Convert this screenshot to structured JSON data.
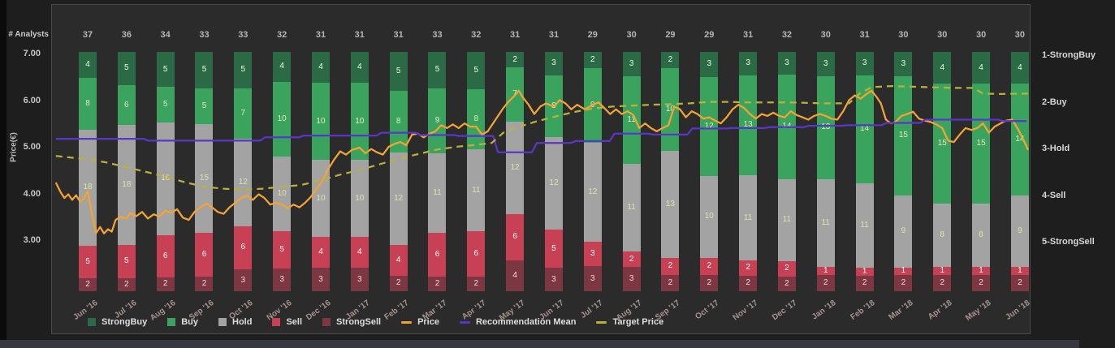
{
  "chart_data": {
    "type": "combo-stacked-bar-with-lines",
    "top_axis_label": "# Analysts",
    "categories": [
      "Jun '16",
      "Jul '16",
      "Aug '16",
      "Sep '16",
      "Oct '16",
      "Nov '16",
      "Dec '16",
      "Jan '17",
      "Feb '17",
      "Mar '17",
      "Apr '17",
      "May '17",
      "Jun '17",
      "Jul '17",
      "Aug '17",
      "Sep '17",
      "Oct '17",
      "Nov '17",
      "Dec '17",
      "Jan '18",
      "Feb '18",
      "Mar '18",
      "Apr '18",
      "May '18",
      "Jun '18"
    ],
    "analyst_counts": [
      37,
      36,
      34,
      33,
      33,
      32,
      31,
      31,
      31,
      33,
      32,
      31,
      31,
      29,
      30,
      29,
      29,
      31,
      32,
      30,
      31,
      30,
      30,
      30,
      30
    ],
    "stacked_series": [
      {
        "name": "StrongBuy",
        "color": "#2a6b46",
        "label_color": "#f2f7ee",
        "values": [
          4,
          5,
          5,
          5,
          5,
          4,
          4,
          4,
          5,
          5,
          5,
          2,
          3,
          2,
          3,
          2,
          3,
          3,
          3,
          3,
          3,
          3,
          4,
          4,
          4
        ]
      },
      {
        "name": "Buy",
        "color": "#3aa45e",
        "label_color": "#e6e9c0",
        "values": [
          8,
          6,
          5,
          5,
          7,
          10,
          10,
          10,
          8,
          9,
          8,
          7,
          8,
          9,
          11,
          10,
          12,
          13,
          14,
          13,
          14,
          15,
          15,
          15,
          14
        ]
      },
      {
        "name": "Hold",
        "color": "#a3a3a3",
        "label_color": "#dfe3a6",
        "values": [
          18,
          18,
          16,
          15,
          12,
          10,
          10,
          10,
          12,
          11,
          11,
          12,
          12,
          12,
          11,
          13,
          10,
          11,
          11,
          11,
          11,
          9,
          8,
          8,
          9
        ]
      },
      {
        "name": "Sell",
        "color": "#c74054",
        "label_color": "#ffffff",
        "values": [
          5,
          5,
          6,
          6,
          6,
          5,
          4,
          4,
          4,
          6,
          6,
          6,
          5,
          3,
          2,
          2,
          2,
          2,
          2,
          1,
          1,
          1,
          1,
          1,
          1
        ]
      },
      {
        "name": "StrongSell",
        "color": "#7d3743",
        "label_color": "#f2dada",
        "values": [
          2,
          2,
          2,
          2,
          3,
          3,
          3,
          3,
          2,
          2,
          2,
          4,
          3,
          3,
          3,
          2,
          2,
          2,
          2,
          2,
          2,
          2,
          2,
          2,
          2
        ]
      }
    ],
    "left_axis": {
      "label": "Price(€)",
      "ticks": [
        "7.00",
        "6.00",
        "5.00",
        "4.00",
        "3.00"
      ],
      "tick_values": [
        7,
        6,
        5,
        4,
        3
      ]
    },
    "right_axis": {
      "labels": [
        "1-StrongBuy",
        "2-Buy",
        "3-Hold",
        "4-Sell",
        "5-StrongSell"
      ],
      "values": [
        1,
        2,
        3,
        4,
        5
      ]
    },
    "lines": [
      {
        "name": "Price",
        "color": "#f5a331",
        "style": "solid",
        "axis": "price_eur",
        "points": [
          [
            -0.82,
            4.25
          ],
          [
            -0.7,
            4.05
          ],
          [
            -0.6,
            3.92
          ],
          [
            -0.5,
            4.0
          ],
          [
            -0.4,
            3.88
          ],
          [
            -0.3,
            3.98
          ],
          [
            -0.2,
            3.85
          ],
          [
            -0.1,
            3.9
          ],
          [
            0.0,
            4.07
          ],
          [
            0.1,
            3.6
          ],
          [
            0.22,
            3.17
          ],
          [
            0.32,
            3.3
          ],
          [
            0.42,
            3.16
          ],
          [
            0.52,
            3.25
          ],
          [
            0.62,
            3.2
          ],
          [
            0.72,
            3.45
          ],
          [
            0.85,
            3.52
          ],
          [
            1.0,
            3.48
          ],
          [
            1.1,
            3.6
          ],
          [
            1.25,
            3.53
          ],
          [
            1.4,
            3.62
          ],
          [
            1.55,
            3.48
          ],
          [
            1.7,
            3.57
          ],
          [
            1.85,
            3.52
          ],
          [
            2.0,
            3.65
          ],
          [
            2.15,
            3.6
          ],
          [
            2.3,
            3.68
          ],
          [
            2.45,
            3.5
          ],
          [
            2.6,
            3.45
          ],
          [
            2.75,
            3.62
          ],
          [
            2.9,
            3.72
          ],
          [
            3.05,
            3.8
          ],
          [
            3.2,
            3.72
          ],
          [
            3.35,
            3.62
          ],
          [
            3.5,
            3.58
          ],
          [
            3.65,
            3.72
          ],
          [
            3.8,
            3.82
          ],
          [
            3.95,
            3.92
          ],
          [
            4.1,
            3.97
          ],
          [
            4.25,
            3.88
          ],
          [
            4.4,
            4.0
          ],
          [
            4.55,
            3.92
          ],
          [
            4.7,
            3.78
          ],
          [
            4.85,
            3.82
          ],
          [
            5.0,
            3.78
          ],
          [
            5.15,
            3.7
          ],
          [
            5.3,
            3.78
          ],
          [
            5.45,
            3.72
          ],
          [
            5.6,
            3.82
          ],
          [
            5.75,
            3.95
          ],
          [
            5.9,
            4.12
          ],
          [
            6.05,
            4.3
          ],
          [
            6.2,
            4.55
          ],
          [
            6.35,
            4.75
          ],
          [
            6.5,
            4.92
          ],
          [
            6.65,
            4.85
          ],
          [
            6.8,
            4.95
          ],
          [
            7.0,
            5.0
          ],
          [
            7.15,
            4.88
          ],
          [
            7.3,
            4.97
          ],
          [
            7.45,
            4.9
          ],
          [
            7.6,
            4.85
          ],
          [
            7.75,
            5.02
          ],
          [
            7.9,
            5.08
          ],
          [
            8.05,
            5.12
          ],
          [
            8.2,
            5.05
          ],
          [
            8.35,
            5.28
          ],
          [
            8.5,
            5.3
          ],
          [
            8.65,
            5.22
          ],
          [
            8.8,
            5.3
          ],
          [
            8.95,
            5.35
          ],
          [
            9.1,
            5.48
          ],
          [
            9.25,
            5.42
          ],
          [
            9.4,
            5.5
          ],
          [
            9.55,
            5.42
          ],
          [
            9.7,
            5.52
          ],
          [
            9.85,
            5.45
          ],
          [
            10.0,
            5.45
          ],
          [
            10.15,
            5.28
          ],
          [
            10.3,
            5.35
          ],
          [
            10.5,
            5.6
          ],
          [
            10.7,
            5.85
          ],
          [
            10.85,
            6.0
          ],
          [
            11.0,
            6.12
          ],
          [
            11.1,
            6.22
          ],
          [
            11.2,
            6.08
          ],
          [
            11.35,
            5.92
          ],
          [
            11.5,
            5.72
          ],
          [
            11.65,
            5.88
          ],
          [
            11.8,
            5.95
          ],
          [
            12.0,
            5.88
          ],
          [
            12.15,
            6.02
          ],
          [
            12.3,
            5.95
          ],
          [
            12.45,
            5.82
          ],
          [
            12.6,
            5.92
          ],
          [
            12.8,
            5.82
          ],
          [
            13.0,
            5.92
          ],
          [
            13.15,
            5.97
          ],
          [
            13.3,
            5.85
          ],
          [
            13.45,
            5.72
          ],
          [
            13.6,
            5.82
          ],
          [
            13.75,
            5.72
          ],
          [
            13.9,
            5.78
          ],
          [
            14.05,
            5.7
          ],
          [
            14.2,
            5.42
          ],
          [
            14.35,
            5.52
          ],
          [
            14.5,
            5.42
          ],
          [
            14.65,
            5.35
          ],
          [
            14.8,
            5.42
          ],
          [
            14.95,
            5.48
          ],
          [
            15.1,
            5.88
          ],
          [
            15.25,
            5.82
          ],
          [
            15.4,
            5.65
          ],
          [
            15.55,
            5.78
          ],
          [
            15.7,
            5.72
          ],
          [
            15.85,
            5.62
          ],
          [
            16.0,
            5.65
          ],
          [
            16.15,
            5.58
          ],
          [
            16.3,
            5.52
          ],
          [
            16.45,
            5.65
          ],
          [
            16.6,
            5.82
          ],
          [
            16.75,
            5.92
          ],
          [
            16.9,
            5.85
          ],
          [
            17.05,
            5.72
          ],
          [
            17.2,
            5.62
          ],
          [
            17.35,
            5.72
          ],
          [
            17.5,
            5.68
          ],
          [
            17.65,
            5.75
          ],
          [
            17.8,
            5.68
          ],
          [
            17.95,
            5.65
          ],
          [
            18.1,
            5.78
          ],
          [
            18.25,
            5.7
          ],
          [
            18.4,
            5.65
          ],
          [
            18.55,
            5.6
          ],
          [
            18.7,
            5.68
          ],
          [
            18.85,
            5.72
          ],
          [
            19.0,
            5.68
          ],
          [
            19.15,
            5.62
          ],
          [
            19.3,
            5.6
          ],
          [
            19.45,
            5.78
          ],
          [
            19.6,
            6.02
          ],
          [
            19.75,
            6.12
          ],
          [
            19.9,
            6.05
          ],
          [
            20.05,
            6.15
          ],
          [
            20.18,
            6.22
          ],
          [
            20.3,
            6.1
          ],
          [
            20.42,
            5.95
          ],
          [
            20.55,
            5.6
          ],
          [
            20.68,
            5.52
          ],
          [
            20.8,
            5.55
          ],
          [
            20.95,
            5.68
          ],
          [
            21.1,
            5.72
          ],
          [
            21.25,
            5.77
          ],
          [
            21.4,
            5.62
          ],
          [
            21.55,
            5.58
          ],
          [
            21.7,
            5.55
          ],
          [
            21.85,
            5.5
          ],
          [
            22.0,
            5.42
          ],
          [
            22.15,
            5.15
          ],
          [
            22.3,
            5.12
          ],
          [
            22.45,
            5.28
          ],
          [
            22.6,
            5.42
          ],
          [
            22.75,
            5.38
          ],
          [
            22.9,
            5.42
          ],
          [
            23.05,
            5.52
          ],
          [
            23.2,
            5.32
          ],
          [
            23.35,
            5.45
          ],
          [
            23.5,
            5.52
          ],
          [
            23.65,
            5.58
          ],
          [
            23.8,
            5.6
          ],
          [
            23.95,
            5.4
          ],
          [
            24.1,
            5.15
          ],
          [
            24.25,
            4.95
          ]
        ]
      },
      {
        "name": "Recommendation Mean",
        "color": "#5b34c8",
        "style": "step",
        "axis": "recommendation_1_to_5",
        "monthly_values": [
          2.81,
          2.81,
          2.85,
          2.85,
          2.85,
          2.78,
          2.74,
          2.74,
          2.68,
          2.73,
          2.75,
          3.1,
          2.9,
          2.86,
          2.7,
          2.72,
          2.59,
          2.58,
          2.56,
          2.53,
          2.52,
          2.47,
          2.4,
          2.4,
          2.43
        ]
      },
      {
        "name": "Target Price",
        "color": "#bdb03a",
        "style": "dashed",
        "axis": "price_eur",
        "points": [
          [
            -0.82,
            4.82
          ],
          [
            0,
            4.75
          ],
          [
            0.5,
            4.68
          ],
          [
            1,
            4.58
          ],
          [
            1.5,
            4.48
          ],
          [
            2,
            4.38
          ],
          [
            2.5,
            4.26
          ],
          [
            3,
            4.16
          ],
          [
            3.5,
            4.12
          ],
          [
            4,
            4.1
          ],
          [
            4.5,
            4.12
          ],
          [
            5,
            4.16
          ],
          [
            5.5,
            4.2
          ],
          [
            6,
            4.3
          ],
          [
            6.5,
            4.42
          ],
          [
            7,
            4.52
          ],
          [
            7.5,
            4.64
          ],
          [
            8,
            4.76
          ],
          [
            8.5,
            4.86
          ],
          [
            9,
            4.96
          ],
          [
            9.5,
            5.02
          ],
          [
            10,
            5.06
          ],
          [
            10.4,
            5.1
          ],
          [
            10.7,
            5.32
          ],
          [
            11,
            5.42
          ],
          [
            11.5,
            5.55
          ],
          [
            12,
            5.66
          ],
          [
            12.5,
            5.76
          ],
          [
            13,
            5.84
          ],
          [
            13.5,
            5.88
          ],
          [
            14,
            5.9
          ],
          [
            14.5,
            5.92
          ],
          [
            15,
            5.93
          ],
          [
            15.5,
            5.95
          ],
          [
            16,
            5.98
          ],
          [
            16.5,
            5.98
          ],
          [
            17,
            5.97
          ],
          [
            18,
            5.97
          ],
          [
            19,
            5.95
          ],
          [
            19.6,
            5.95
          ],
          [
            19.9,
            6.18
          ],
          [
            20.2,
            6.3
          ],
          [
            20.7,
            6.32
          ],
          [
            21.5,
            6.3
          ],
          [
            22.3,
            6.28
          ],
          [
            22.8,
            6.28
          ],
          [
            23.05,
            6.16
          ],
          [
            23.5,
            6.15
          ],
          [
            24.3,
            6.16
          ]
        ]
      }
    ],
    "legend": [
      {
        "label": "StrongBuy",
        "marker": "square",
        "color": "#2a6b46"
      },
      {
        "label": "Buy",
        "marker": "square",
        "color": "#3aa45e"
      },
      {
        "label": "Hold",
        "marker": "square",
        "color": "#a3a3a3"
      },
      {
        "label": "Sell",
        "marker": "square",
        "color": "#c74054"
      },
      {
        "label": "StrongSell",
        "marker": "square",
        "color": "#7d3743"
      },
      {
        "label": "Price",
        "marker": "line",
        "color": "#f5a331"
      },
      {
        "label": "Recommendation Mean",
        "marker": "line",
        "color": "#5b34c8"
      },
      {
        "label": "Target Price",
        "marker": "line",
        "color": "#bdb03a"
      }
    ]
  }
}
